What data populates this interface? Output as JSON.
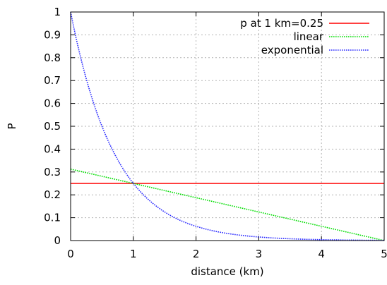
{
  "chart_data": {
    "type": "line",
    "title": "",
    "xlabel": "distance (km)",
    "ylabel": "P",
    "xlim": [
      0,
      5
    ],
    "ylim": [
      0,
      1
    ],
    "xticks": [
      0,
      1,
      2,
      3,
      4,
      5
    ],
    "yticks": [
      0,
      0.1,
      0.2,
      0.3,
      0.4,
      0.5,
      0.6,
      0.7,
      0.8,
      0.9,
      1
    ],
    "xtick_labels": [
      "0",
      "1",
      "2",
      "3",
      "4",
      "5"
    ],
    "ytick_labels": [
      "0",
      "0.1",
      "0.2",
      "0.3",
      "0.4",
      "0.5",
      "0.6",
      "0.7",
      "0.8",
      "0.9",
      "1"
    ],
    "grid": true,
    "legend_position": "top-right",
    "series": [
      {
        "name": "p at 1 km=0.25",
        "color": "#ff0000",
        "style": "solid",
        "x": [
          0,
          5
        ],
        "y": [
          0.25,
          0.25
        ]
      },
      {
        "name": "linear",
        "color": "#00dd00",
        "style": "dotted",
        "x": [
          0,
          1,
          2,
          3,
          4,
          5
        ],
        "y": [
          0.3125,
          0.25,
          0.1875,
          0.125,
          0.0625,
          0.0
        ]
      },
      {
        "name": "exponential",
        "color": "#2a2aff",
        "style": "dotted",
        "x": [
          0,
          0.25,
          0.5,
          0.75,
          1,
          1.25,
          1.5,
          1.75,
          2,
          2.25,
          2.5,
          2.75,
          3,
          3.25,
          3.5,
          3.75,
          4,
          4.25,
          4.5,
          4.75,
          5
        ],
        "y": [
          1.0,
          0.707,
          0.5,
          0.354,
          0.25,
          0.177,
          0.125,
          0.088,
          0.0625,
          0.044,
          0.031,
          0.022,
          0.0156,
          0.011,
          0.0078,
          0.0055,
          0.0039,
          0.0028,
          0.002,
          0.0014,
          0.001
        ]
      }
    ]
  }
}
